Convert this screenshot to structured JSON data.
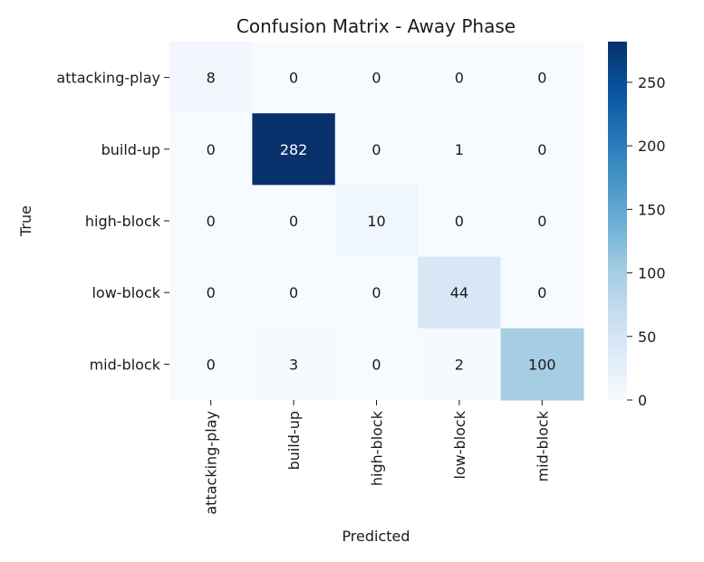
{
  "chart_data": {
    "type": "heatmap",
    "title": "Confusion Matrix - Away Phase",
    "xlabel": "Predicted",
    "ylabel": "True",
    "x_categories": [
      "attacking-play",
      "build-up",
      "high-block",
      "low-block",
      "mid-block"
    ],
    "y_categories": [
      "attacking-play",
      "build-up",
      "high-block",
      "low-block",
      "mid-block"
    ],
    "values": [
      [
        8,
        0,
        0,
        0,
        0
      ],
      [
        0,
        282,
        0,
        1,
        0
      ],
      [
        0,
        0,
        10,
        0,
        0
      ],
      [
        0,
        0,
        0,
        44,
        0
      ],
      [
        0,
        3,
        0,
        2,
        100
      ]
    ],
    "colormap": "Blues",
    "colorbar": {
      "range": [
        0,
        282
      ],
      "ticks": [
        0,
        50,
        100,
        150,
        200,
        250
      ]
    }
  },
  "colors": {
    "text_dark": "#1a1a1a",
    "text_light": "#ffffff",
    "cmap_stops": [
      "#f7fbff",
      "#deebf7",
      "#c6dbef",
      "#9ecae1",
      "#6baed6",
      "#4292c6",
      "#2171b5",
      "#08519c",
      "#08306b"
    ]
  }
}
